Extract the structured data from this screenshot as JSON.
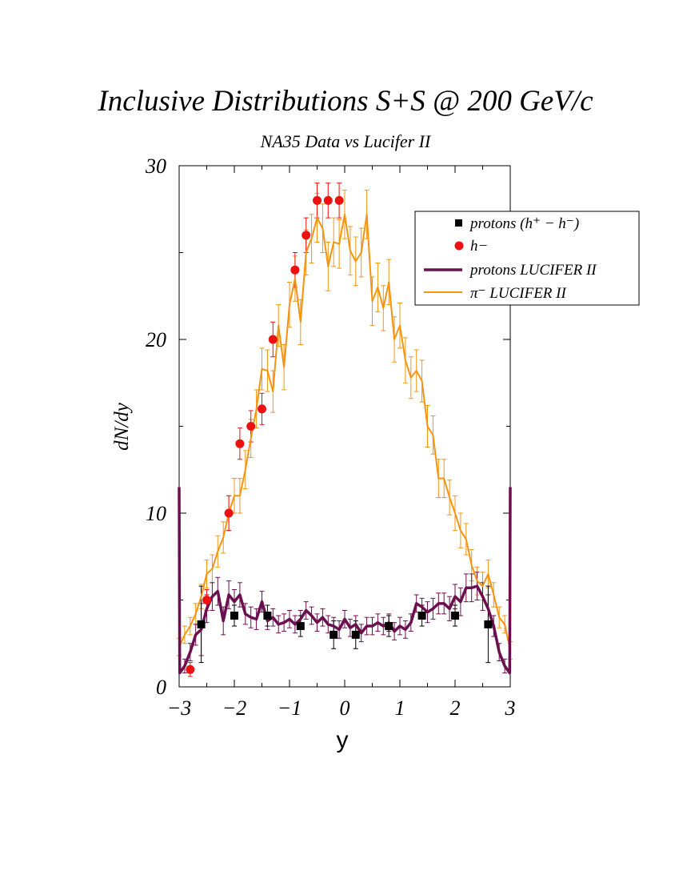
{
  "title": "Inclusive Distributions S+S @ 200 GeV/c",
  "chart_data": {
    "type": "scatter",
    "title": "Inclusive Distributions S+S @ 200 GeV/c",
    "subtitle": "NA35 Data vs Lucifer II",
    "xlabel": "y",
    "ylabel": "dN/dy",
    "xlim": [
      -3,
      3
    ],
    "ylim": [
      0,
      30
    ],
    "x_ticks": [
      "−3",
      "−2",
      "−1",
      "0",
      "1",
      "2",
      "3"
    ],
    "y_ticks": [
      "0",
      "10",
      "20",
      "30"
    ],
    "grid": false,
    "legend_position": "top-right",
    "legend": {
      "protons_data": "protons (h⁺ − h⁻)",
      "hminus_data": "h−",
      "protons_model": "protons LUCIFER II",
      "pion_model": "π⁻ LUCIFER II"
    },
    "colors": {
      "protons_data": "#000000",
      "hminus_data": "#ee1111",
      "protons_model": "#6b0f4e",
      "pion_model": "#f59410"
    },
    "series": [
      {
        "name": "protons (h⁺ − h⁻)",
        "kind": "points",
        "marker": "square",
        "x": [
          -2.6,
          -2.0,
          -1.4,
          -0.8,
          -0.2,
          0.2,
          0.8,
          1.4,
          2.0,
          2.6
        ],
        "y": [
          3.6,
          4.1,
          4.1,
          3.5,
          3.0,
          3.0,
          3.5,
          4.1,
          4.1,
          3.6
        ],
        "err": [
          2.2,
          0.6,
          0.6,
          0.6,
          0.8,
          0.8,
          0.6,
          0.6,
          0.6,
          2.2
        ]
      },
      {
        "name": "h−",
        "kind": "points",
        "marker": "circle",
        "x": [
          -2.8,
          -2.5,
          -2.1,
          -1.9,
          -1.7,
          -1.5,
          -1.3,
          -0.9,
          -0.7,
          -0.5,
          -0.3,
          -0.1
        ],
        "y": [
          1.0,
          5.0,
          10.0,
          14.0,
          15.0,
          16.0,
          20.0,
          24.0,
          26.0,
          28.0,
          28.0,
          28.0
        ],
        "err": [
          0.4,
          0.6,
          1.0,
          0.9,
          0.9,
          0.9,
          1.0,
          1.0,
          1.0,
          1.0,
          1.0,
          1.0
        ]
      },
      {
        "name": "protons LUCIFER II",
        "kind": "line",
        "x": [
          -3.0,
          -2.99,
          -2.9,
          -2.8,
          -2.7,
          -2.6,
          -2.5,
          -2.4,
          -2.3,
          -2.2,
          -2.1,
          -2.0,
          -1.9,
          -1.8,
          -1.7,
          -1.6,
          -1.5,
          -1.4,
          -1.3,
          -1.2,
          -1.1,
          -1.0,
          -0.9,
          -0.8,
          -0.7,
          -0.6,
          -0.5,
          -0.4,
          -0.3,
          -0.2,
          -0.1,
          0.0,
          0.1,
          0.2,
          0.3,
          0.4,
          0.5,
          0.6,
          0.7,
          0.8,
          0.9,
          1.0,
          1.1,
          1.2,
          1.3,
          1.4,
          1.5,
          1.6,
          1.7,
          1.8,
          1.9,
          2.0,
          2.1,
          2.2,
          2.3,
          2.4,
          2.5,
          2.6,
          2.7,
          2.8,
          2.9,
          2.99,
          3.0
        ],
        "y": [
          11.5,
          0.8,
          1.2,
          2.0,
          3.0,
          3.3,
          4.5,
          5.2,
          5.5,
          3.8,
          5.3,
          4.9,
          5.3,
          4.2,
          4.0,
          3.9,
          4.9,
          3.8,
          4.0,
          3.6,
          3.7,
          3.9,
          3.6,
          3.9,
          4.4,
          4.1,
          3.7,
          4.0,
          3.6,
          3.5,
          3.3,
          3.9,
          3.4,
          3.6,
          3.1,
          3.5,
          3.5,
          3.7,
          3.5,
          3.7,
          3.2,
          3.5,
          3.3,
          3.7,
          4.8,
          4.6,
          4.3,
          4.5,
          4.8,
          4.8,
          4.5,
          5.2,
          4.9,
          5.7,
          5.7,
          5.8,
          5.2,
          4.5,
          3.5,
          2.0,
          1.2,
          0.8,
          11.5
        ],
        "err": [
          0.0,
          0.0,
          0.4,
          0.5,
          0.6,
          1.5,
          0.8,
          0.8,
          0.8,
          0.8,
          0.8,
          0.7,
          0.7,
          0.6,
          0.6,
          0.6,
          0.6,
          0.5,
          0.5,
          0.5,
          0.5,
          0.5,
          0.5,
          0.5,
          0.5,
          0.5,
          0.5,
          0.5,
          0.5,
          0.5,
          0.5,
          0.5,
          0.5,
          0.5,
          0.5,
          0.5,
          0.5,
          0.5,
          0.5,
          0.5,
          0.5,
          0.5,
          0.5,
          0.5,
          0.5,
          0.5,
          0.6,
          0.6,
          0.6,
          0.6,
          0.7,
          0.7,
          0.8,
          0.8,
          0.8,
          0.8,
          0.8,
          0.8,
          0.6,
          0.5,
          0.4,
          0.0,
          0.0
        ]
      },
      {
        "name": "π⁻ LUCIFER II",
        "kind": "line",
        "x": [
          -3.0,
          -2.9,
          -2.8,
          -2.7,
          -2.6,
          -2.5,
          -2.4,
          -2.3,
          -2.2,
          -2.1,
          -2.0,
          -1.9,
          -1.8,
          -1.7,
          -1.6,
          -1.5,
          -1.4,
          -1.3,
          -1.2,
          -1.1,
          -1.0,
          -0.9,
          -0.8,
          -0.7,
          -0.6,
          -0.5,
          -0.4,
          -0.3,
          -0.2,
          -0.1,
          0.0,
          0.1,
          0.2,
          0.3,
          0.4,
          0.5,
          0.6,
          0.7,
          0.8,
          0.9,
          1.0,
          1.1,
          1.2,
          1.3,
          1.4,
          1.5,
          1.6,
          1.7,
          1.8,
          1.9,
          2.0,
          2.1,
          2.2,
          2.3,
          2.4,
          2.5,
          2.6,
          2.7,
          2.8,
          2.9,
          3.0
        ],
        "y": [
          2.3,
          3.0,
          3.5,
          4.2,
          5.2,
          6.5,
          6.8,
          7.8,
          8.6,
          10.0,
          11.0,
          11.0,
          12.5,
          14.3,
          16.0,
          18.3,
          18.2,
          17.0,
          20.8,
          18.4,
          22.0,
          23.5,
          21.0,
          25.0,
          25.8,
          27.0,
          26.4,
          24.2,
          25.6,
          25.5,
          27.2,
          25.1,
          24.5,
          25.0,
          27.2,
          22.2,
          23.0,
          21.8,
          23.3,
          20.0,
          20.8,
          18.8,
          17.8,
          18.2,
          17.6,
          15.0,
          14.5,
          12.0,
          12.0,
          10.9,
          10.0,
          9.0,
          8.5,
          7.0,
          6.1,
          5.8,
          6.5,
          5.3,
          4.0,
          3.6,
          2.1
        ],
        "err": [
          0.5,
          0.5,
          0.5,
          0.6,
          0.7,
          0.8,
          0.8,
          0.9,
          0.9,
          1.0,
          1.0,
          1.0,
          1.1,
          1.1,
          1.1,
          1.2,
          1.2,
          1.2,
          1.2,
          1.3,
          1.3,
          1.3,
          1.3,
          1.3,
          1.4,
          1.4,
          1.4,
          1.4,
          1.4,
          1.4,
          1.4,
          1.4,
          1.4,
          1.4,
          1.4,
          1.4,
          1.4,
          1.3,
          1.3,
          1.3,
          1.3,
          1.3,
          1.2,
          1.2,
          1.2,
          1.2,
          1.1,
          1.1,
          1.1,
          1.0,
          1.0,
          1.0,
          0.9,
          0.9,
          0.8,
          0.8,
          0.8,
          0.7,
          0.6,
          0.5,
          0.5
        ]
      }
    ]
  }
}
